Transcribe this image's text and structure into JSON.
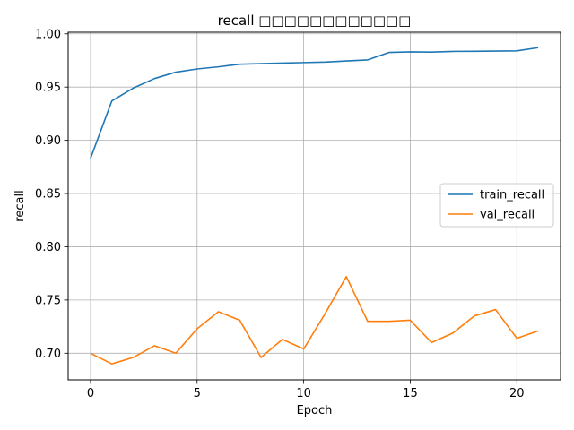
{
  "chart_data": {
    "type": "line",
    "title": "recall □□□□□□□□□□□□",
    "xlabel": "Epoch",
    "ylabel": "recall",
    "xlim": [
      -1.05,
      22.05
    ],
    "ylim": [
      0.675,
      1.0015
    ],
    "xticks": [
      0,
      5,
      10,
      15,
      20
    ],
    "xtick_labels": [
      "0",
      "5",
      "10",
      "15",
      "20"
    ],
    "yticks": [
      0.7,
      0.75,
      0.8,
      0.85,
      0.9,
      0.95,
      1.0
    ],
    "ytick_labels": [
      "0.70",
      "0.75",
      "0.80",
      "0.85",
      "0.90",
      "0.95",
      "1.00"
    ],
    "grid": true,
    "legend_position": "center-right",
    "x": [
      0,
      1,
      2,
      3,
      4,
      5,
      6,
      7,
      8,
      9,
      10,
      11,
      12,
      13,
      14,
      15,
      16,
      17,
      18,
      19,
      20,
      21
    ],
    "series": [
      {
        "name": "train_recall",
        "color": "#1f77b4",
        "values": [
          0.883,
          0.937,
          0.949,
          0.958,
          0.964,
          0.967,
          0.969,
          0.9715,
          0.972,
          0.9725,
          0.973,
          0.9735,
          0.9745,
          0.9755,
          0.9825,
          0.983,
          0.9828,
          0.9835,
          0.9836,
          0.9838,
          0.984,
          0.987
        ]
      },
      {
        "name": "val_recall",
        "color": "#ff7f0e",
        "values": [
          0.7,
          0.69,
          0.696,
          0.707,
          0.7,
          0.723,
          0.739,
          0.731,
          0.696,
          0.713,
          0.704,
          0.737,
          0.772,
          0.73,
          0.73,
          0.731,
          0.71,
          0.719,
          0.735,
          0.741,
          0.714,
          0.721
        ]
      }
    ]
  }
}
